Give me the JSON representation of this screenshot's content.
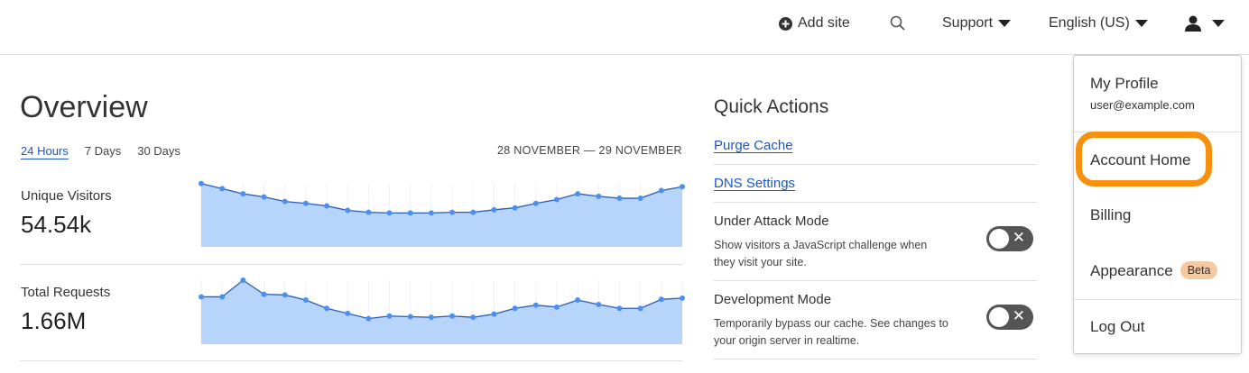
{
  "header": {
    "add_site": "Add site",
    "support": "Support",
    "language": "English (US)",
    "icons": [
      "plus-circle-icon",
      "search-icon",
      "user-icon"
    ]
  },
  "overview": {
    "title": "Overview",
    "tabs": [
      "24 Hours",
      "7 Days",
      "30 Days"
    ],
    "active_tab": "24 Hours",
    "date_range": "28 NOVEMBER — 29 NOVEMBER"
  },
  "metrics": [
    {
      "label": "Unique Visitors",
      "value": "54.54k"
    },
    {
      "label": "Total Requests",
      "value": "1.66M"
    }
  ],
  "chart_data": [
    {
      "type": "area",
      "series": [
        {
          "values": [
            99,
            91,
            83,
            78,
            71,
            68,
            64,
            57,
            54,
            53,
            53,
            53,
            54,
            54,
            58,
            61,
            68,
            74,
            83,
            79,
            76,
            76,
            88,
            94
          ]
        }
      ],
      "ylim": [
        0,
        100
      ],
      "grid": "vertical"
    },
    {
      "type": "area",
      "series": [
        {
          "values": [
            74,
            74,
            100,
            78,
            77,
            69,
            56,
            48,
            40,
            44,
            43,
            42,
            44,
            42,
            47,
            56,
            61,
            58,
            69,
            62,
            56,
            56,
            70,
            72
          ]
        }
      ],
      "ylim": [
        0,
        100
      ],
      "grid": "vertical"
    }
  ],
  "quick_actions": {
    "title": "Quick Actions",
    "purge": "Purge Cache",
    "dns": "DNS Settings",
    "under_attack": {
      "title": "Under Attack Mode",
      "desc": "Show visitors a JavaScript challenge when they visit your site.",
      "enabled": false
    },
    "dev_mode": {
      "title": "Development Mode",
      "desc": "Temporarily bypass our cache. See changes to your origin server in realtime.",
      "enabled": false
    }
  },
  "menu": {
    "profile": "My Profile",
    "email": "user@example.com",
    "account_home": "Account Home",
    "billing": "Billing",
    "appearance": "Appearance",
    "beta": "Beta",
    "logout": "Log Out"
  },
  "colors": {
    "accent": "#1b57c2",
    "chart_fill": "#b7d5fb",
    "chart_point": "#4a90f0",
    "highlight": "#f6900d"
  }
}
